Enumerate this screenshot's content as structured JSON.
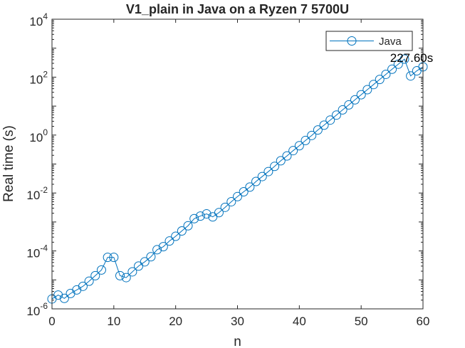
{
  "chart_data": {
    "type": "line",
    "title": "V1_plain in Java on a Ryzen 7 5700U",
    "xlabel": "n",
    "ylabel": "Real time (s)",
    "xlim": [
      0,
      60
    ],
    "ylim": [
      1e-06,
      10000
    ],
    "yscale": "log",
    "grid": false,
    "legend_position": "top-right",
    "x_ticks": [
      0,
      10,
      20,
      30,
      40,
      50,
      60
    ],
    "x_tick_labels": [
      "0",
      "10",
      "20",
      "30",
      "40",
      "50",
      "60"
    ],
    "y_tick_exponents": [
      -6,
      -4,
      -2,
      0,
      2,
      4
    ],
    "y_tick_base": "10",
    "y_tick_labels": [
      "-6",
      "-4",
      "-2",
      "0",
      "2",
      "4"
    ],
    "series": [
      {
        "name": "Java",
        "color": "#0072BD",
        "marker": "circle",
        "x": [
          0,
          1,
          2,
          3,
          4,
          5,
          6,
          7,
          8,
          9,
          10,
          11,
          12,
          13,
          14,
          15,
          16,
          17,
          18,
          19,
          20,
          21,
          22,
          23,
          24,
          25,
          26,
          27,
          28,
          29,
          30,
          31,
          32,
          33,
          34,
          35,
          36,
          37,
          38,
          39,
          40,
          41,
          42,
          43,
          44,
          45,
          46,
          47,
          48,
          49,
          50,
          51,
          52,
          53,
          54,
          55,
          56,
          57,
          58,
          59,
          60
        ],
        "y": [
          2.2e-06,
          3e-06,
          2.3e-06,
          3.4e-06,
          4.5e-06,
          6e-06,
          9e-06,
          1.4e-05,
          2.2e-05,
          6e-05,
          6e-05,
          1.4e-05,
          1.2e-05,
          1.9e-05,
          3e-05,
          4.2e-05,
          6.3e-05,
          0.00011,
          0.00014,
          0.00022,
          0.00032,
          0.00049,
          0.00074,
          0.0013,
          0.0016,
          0.0019,
          0.0015,
          0.0021,
          0.0032,
          0.005,
          0.0075,
          0.011,
          0.016,
          0.025,
          0.037,
          0.055,
          0.083,
          0.13,
          0.19,
          0.29,
          0.43,
          0.65,
          0.97,
          1.5,
          2.2,
          3.3,
          4.9,
          7.4,
          11.0,
          16.5,
          24.7,
          37.0,
          55.5,
          83.3,
          125.0,
          187.5,
          280.0,
          420.0,
          110.0,
          165.0,
          227.6
        ]
      }
    ],
    "annotations": [
      {
        "text": "227.60s",
        "x": 60,
        "y": 227.6
      }
    ]
  }
}
